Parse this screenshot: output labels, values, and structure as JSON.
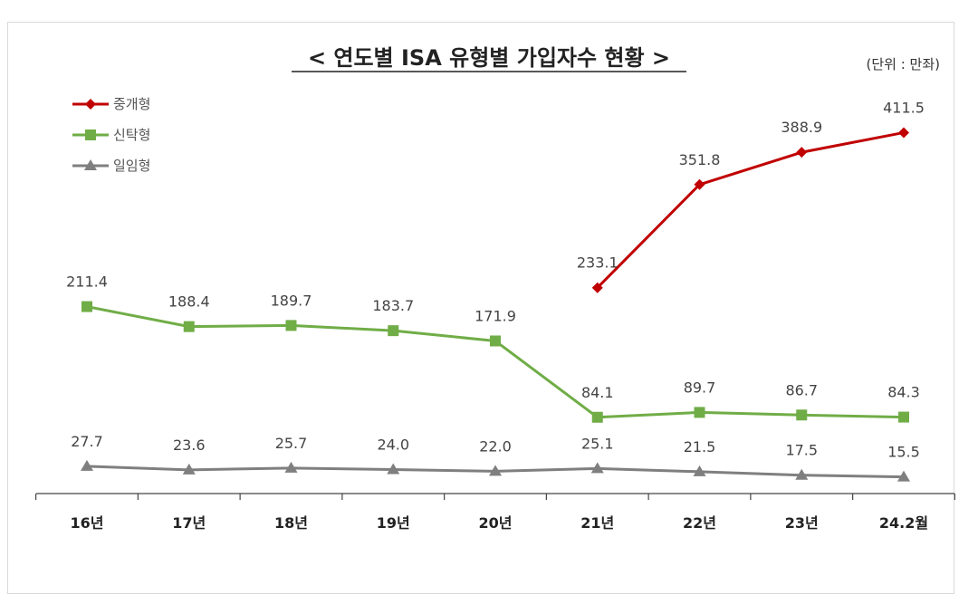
{
  "chart_data": {
    "type": "line",
    "title": "< 연도별 ISA 유형별 가입자수 현황 >",
    "unit": "(단위 : 만좌)",
    "categories": [
      "16년",
      "17년",
      "18년",
      "19년",
      "20년",
      "21년",
      "22년",
      "23년",
      "24.2월"
    ],
    "legend_position": "top-left",
    "grid": false,
    "ylim": [
      0,
      450
    ],
    "series": [
      {
        "name": "중개형",
        "color": "#c00000",
        "marker": "diamond",
        "values": [
          null,
          null,
          null,
          null,
          null,
          233.1,
          351.8,
          388.9,
          411.5
        ],
        "labels": [
          "",
          "",
          "",
          "",
          "",
          "233.1",
          "351.8",
          "388.9",
          "411.5"
        ]
      },
      {
        "name": "신탁형",
        "color": "#70ad47",
        "marker": "square",
        "values": [
          211.4,
          188.4,
          189.7,
          183.7,
          171.9,
          84.1,
          89.7,
          86.7,
          84.3
        ],
        "labels": [
          "211.4",
          "188.4",
          "189.7",
          "183.7",
          "171.9",
          "84.1",
          "89.7",
          "86.7",
          "84.3"
        ]
      },
      {
        "name": "일임형",
        "color": "#7f7f7f",
        "marker": "triangle",
        "values": [
          27.7,
          23.6,
          25.7,
          24.0,
          22.0,
          25.1,
          21.5,
          17.5,
          15.5
        ],
        "labels": [
          "27.7",
          "23.6",
          "25.7",
          "24.0",
          "22.0",
          "25.1",
          "21.5",
          "17.5",
          "15.5"
        ]
      }
    ]
  }
}
